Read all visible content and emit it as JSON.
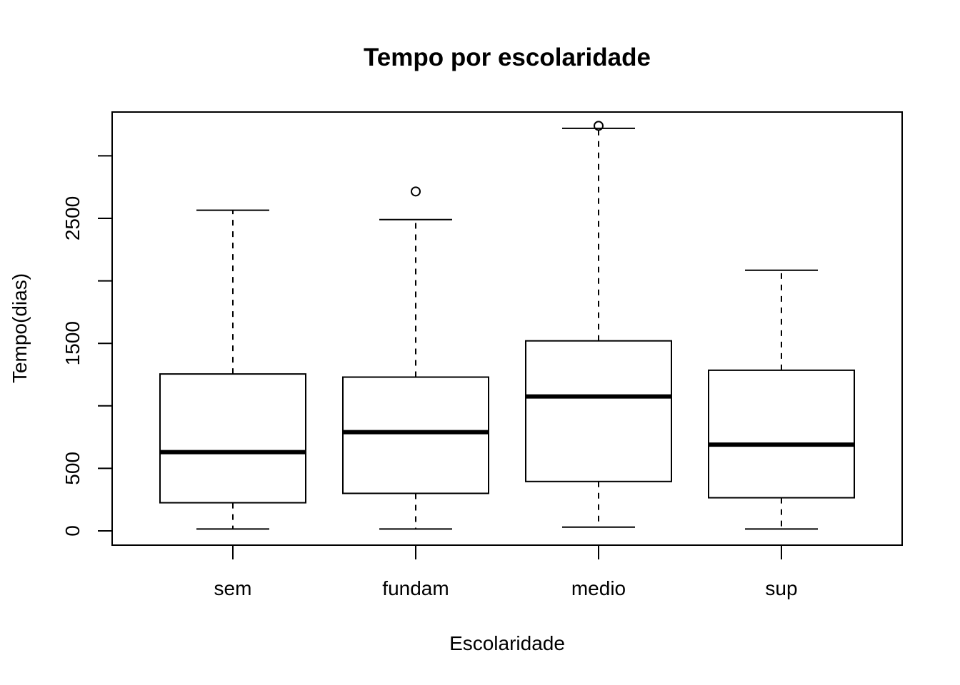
{
  "chart_data": {
    "type": "boxplot",
    "title": "Tempo por escolaridade",
    "xlabel": "Escolaridade",
    "ylabel": "Tempo(dias)",
    "categories": [
      "sem",
      "fundam",
      "medio",
      "sup"
    ],
    "ylim": [
      -120,
      3350
    ],
    "y_ticks": [
      0,
      500,
      1000,
      1500,
      2000,
      2500,
      3000
    ],
    "y_tick_labels": [
      "0",
      "500",
      "",
      "1500",
      "",
      "2500",
      ""
    ],
    "grid": false,
    "legend": "none",
    "boxes": [
      {
        "category": "sem",
        "min": 15,
        "q1": 225,
        "median": 630,
        "q3": 1255,
        "max": 2565,
        "outliers": []
      },
      {
        "category": "fundam",
        "min": 15,
        "q1": 300,
        "median": 790,
        "q3": 1230,
        "max": 2490,
        "outliers": [
          2715
        ]
      },
      {
        "category": "medio",
        "min": 30,
        "q1": 395,
        "median": 1075,
        "q3": 1520,
        "max": 3220,
        "outliers": [
          3240
        ]
      },
      {
        "category": "sup",
        "min": 15,
        "q1": 265,
        "median": 690,
        "q3": 1285,
        "max": 2085,
        "outliers": []
      }
    ]
  }
}
